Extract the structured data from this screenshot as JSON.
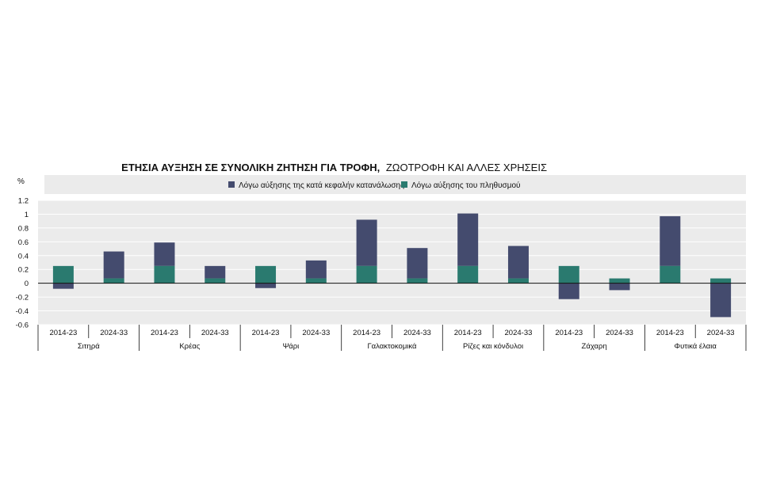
{
  "chart_data": {
    "type": "bar",
    "stacked": true,
    "title": "ΕΤΗΣΙΑ ΑΥΞΗΣΗ ΣΕ ΣΥΝΟΛΙΚΗ ΖΗΤΗΣΗ ΓΙΑ ΤΡΟΦΗ,",
    "subtitle": "ΖΩΟΤΡΟΦΗ ΚΑΙ ΑΛΛΕΣ ΧΡΗΣΕΙΣ",
    "ylabel": "%",
    "ylim": [
      -0.6,
      1.2
    ],
    "yticks": [
      "1.2",
      "1",
      "0.8",
      "0.6",
      "0.4",
      "0.2",
      "0",
      "-0.2",
      "-0.4",
      "-0.6"
    ],
    "ytick_values": [
      1.2,
      1.0,
      0.8,
      0.6,
      0.4,
      0.2,
      0,
      -0.2,
      -0.4,
      -0.6
    ],
    "groups": [
      "Σιτηρά",
      "Κρέας",
      "Ψάρι",
      "Γαλακτοκομικά",
      "Ρίζες και κόνδυλοι",
      "Ζάχαρη",
      "Φυτικά έλαια"
    ],
    "periods": [
      "2014-23",
      "2024-33"
    ],
    "legend_position": "top",
    "grid": true,
    "colors": {
      "per_capita": "#444b6e",
      "population": "#2a7a6f",
      "plot_bg": "#ebebeb",
      "legend_bg": "#ebebeb"
    },
    "series": [
      {
        "name": "Λόγω αύξησης της κατά κεφαλήν κατανάλωσης",
        "key": "per_capita",
        "values": [
          -0.08,
          0.39,
          0.34,
          0.18,
          -0.07,
          0.26,
          0.67,
          0.44,
          0.76,
          0.47,
          -0.23,
          -0.1,
          0.72,
          -0.49
        ]
      },
      {
        "name": "Λόγω αύξησης του πληθυσμού",
        "key": "population",
        "values": [
          0.25,
          0.07,
          0.25,
          0.07,
          0.25,
          0.07,
          0.25,
          0.07,
          0.25,
          0.07,
          0.25,
          0.07,
          0.25,
          0.07
        ]
      }
    ]
  }
}
